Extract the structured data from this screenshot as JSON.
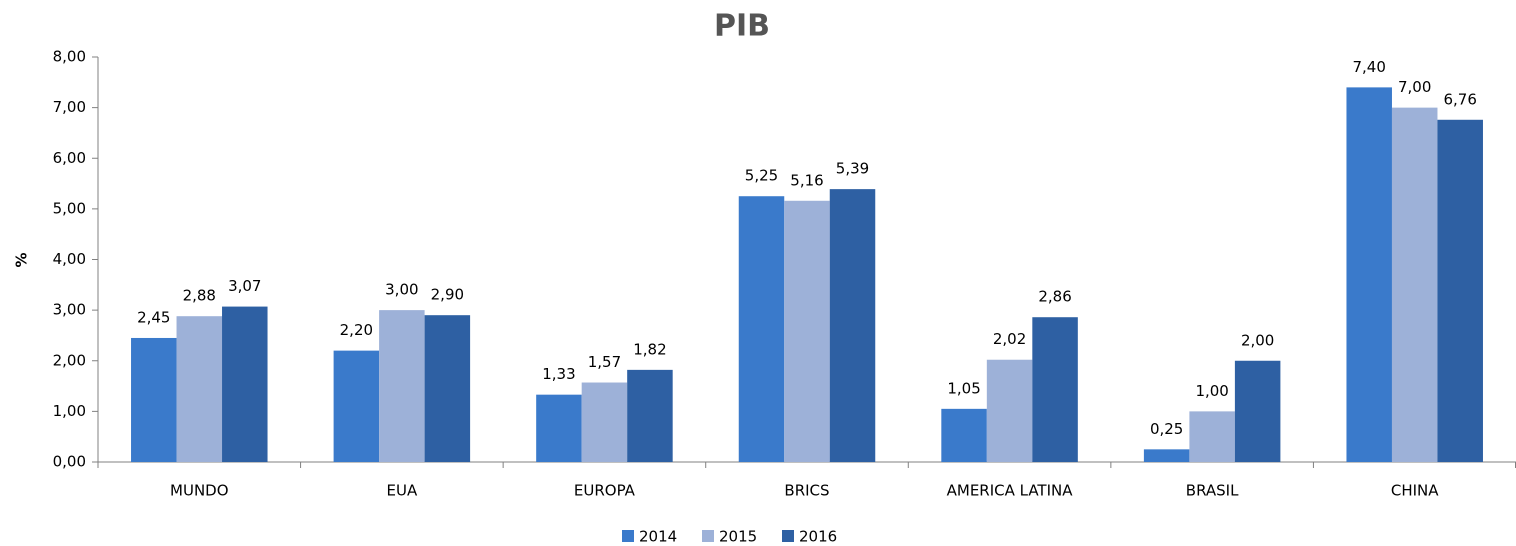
{
  "chart_data": {
    "type": "bar",
    "title": "PIB",
    "y_label": "%",
    "categories": [
      "MUNDO",
      "EUA",
      "EUROPA",
      "BRICS",
      "AMERICA LATINA",
      "BRASIL",
      "CHINA"
    ],
    "series": [
      {
        "name": "2014",
        "color": "#3a7acb",
        "values": [
          2.45,
          2.2,
          1.33,
          5.25,
          1.05,
          0.25,
          7.4
        ],
        "value_labels": [
          "2,45",
          "2,20",
          "1,33",
          "5,25",
          "1,05",
          "0,25",
          "7,40"
        ]
      },
      {
        "name": "2015",
        "color": "#9db1d8",
        "values": [
          2.88,
          3.0,
          1.57,
          5.16,
          2.02,
          1.0,
          7.0
        ],
        "value_labels": [
          "2,88",
          "3,00",
          "1,57",
          "5,16",
          "2,02",
          "1,00",
          "7,00"
        ]
      },
      {
        "name": "2016",
        "color": "#2e60a3",
        "values": [
          3.07,
          2.9,
          1.82,
          5.39,
          2.86,
          2.0,
          6.76
        ],
        "value_labels": [
          "3,07",
          "2,90",
          "1,82",
          "5,39",
          "2,86",
          "2,00",
          "6,76"
        ]
      }
    ],
    "ylim": [
      0,
      8
    ],
    "yticks": [
      {
        "value": 0,
        "label": "0,00"
      },
      {
        "value": 1,
        "label": "1,00"
      },
      {
        "value": 2,
        "label": "2,00"
      },
      {
        "value": 3,
        "label": "3,00"
      },
      {
        "value": 4,
        "label": "4,00"
      },
      {
        "value": 5,
        "label": "5,00"
      },
      {
        "value": 6,
        "label": "6,00"
      },
      {
        "value": 7,
        "label": "7,00"
      },
      {
        "value": 8,
        "label": "8,00"
      }
    ],
    "legend": "bottom"
  }
}
